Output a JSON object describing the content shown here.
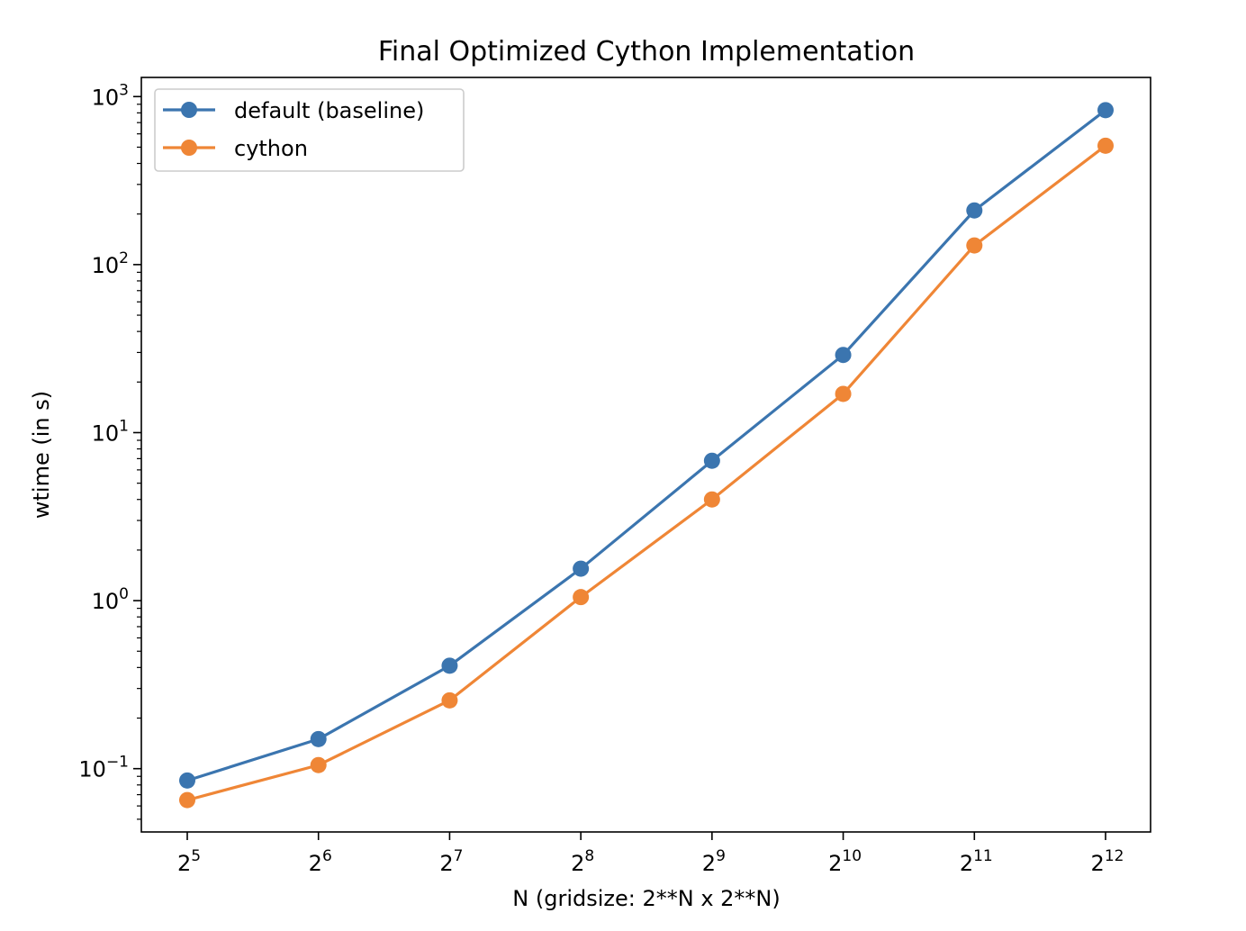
{
  "chart_data": {
    "type": "line",
    "title": "Final Optimized Cython Implementation",
    "xlabel": "N (gridsize: 2**N x 2**N)",
    "ylabel": "wtime (in s)",
    "x_scale": "log2",
    "y_scale": "log10",
    "x": [
      32,
      64,
      128,
      256,
      512,
      1024,
      2048,
      4096
    ],
    "x_tick_labels": [
      {
        "base": "2",
        "exp": "5"
      },
      {
        "base": "2",
        "exp": "6"
      },
      {
        "base": "2",
        "exp": "7"
      },
      {
        "base": "2",
        "exp": "8"
      },
      {
        "base": "2",
        "exp": "9"
      },
      {
        "base": "2",
        "exp": "10"
      },
      {
        "base": "2",
        "exp": "11"
      },
      {
        "base": "2",
        "exp": "12"
      }
    ],
    "y_tick_labels": [
      {
        "value": 0.1,
        "base": "10",
        "exp": "−1"
      },
      {
        "value": 1,
        "base": "10",
        "exp": "0"
      },
      {
        "value": 10,
        "base": "10",
        "exp": "1"
      },
      {
        "value": 100,
        "base": "10",
        "exp": "2"
      },
      {
        "value": 1000,
        "base": "10",
        "exp": "3"
      }
    ],
    "ylim": [
      0.042,
      1300
    ],
    "grid": false,
    "legend_position": "upper-left",
    "series": [
      {
        "name": "default (baseline)",
        "color": "#3b75af",
        "marker": "circle",
        "values": [
          0.085,
          0.15,
          0.41,
          1.55,
          6.8,
          29,
          210,
          830
        ]
      },
      {
        "name": "cython",
        "color": "#ef8636",
        "marker": "circle",
        "values": [
          0.065,
          0.105,
          0.255,
          1.05,
          4.0,
          17,
          130,
          510
        ]
      }
    ]
  }
}
